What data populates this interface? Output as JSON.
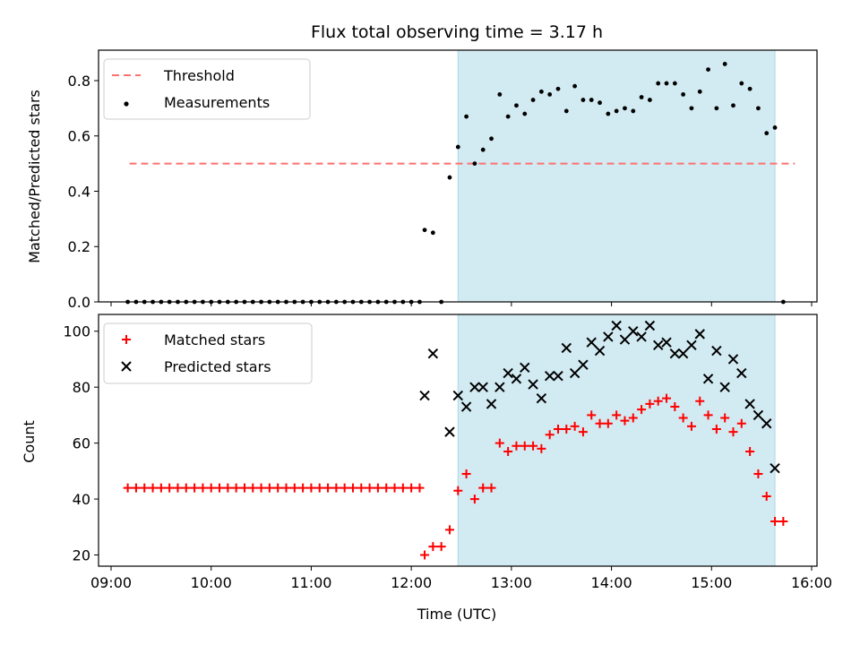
{
  "title": "Flux total observing time = 3.17 h",
  "colors": {
    "threshold": "#ff7070",
    "measurement": "#000000",
    "matched": "#ff0000",
    "predicted": "#000000",
    "span": "#add8e6"
  },
  "chart_data": [
    {
      "type": "scatter",
      "ylabel": "Matched/Predicted stars",
      "xlim": [
        "09:00",
        "16:00"
      ],
      "ylim": [
        0,
        0.91
      ],
      "yticks": [
        "0.0",
        "0.2",
        "0.4",
        "0.6",
        "0.8"
      ],
      "legend": {
        "position": "top-left",
        "entries": [
          "Threshold",
          "Measurements"
        ]
      },
      "observing_span": {
        "start": "12:28",
        "end": "15:38"
      },
      "threshold": {
        "name": "Threshold",
        "value": 0.5,
        "x_start": "09:11",
        "x_end": "15:50"
      },
      "series": [
        {
          "name": "Measurements",
          "points": [
            [
              "09:10",
              0
            ],
            [
              "09:15",
              0
            ],
            [
              "09:20",
              0
            ],
            [
              "09:25",
              0
            ],
            [
              "09:30",
              0
            ],
            [
              "09:35",
              0
            ],
            [
              "09:40",
              0
            ],
            [
              "09:45",
              0
            ],
            [
              "09:50",
              0
            ],
            [
              "09:55",
              0
            ],
            [
              "10:00",
              0
            ],
            [
              "10:05",
              0
            ],
            [
              "10:10",
              0
            ],
            [
              "10:15",
              0
            ],
            [
              "10:20",
              0
            ],
            [
              "10:25",
              0
            ],
            [
              "10:30",
              0
            ],
            [
              "10:35",
              0
            ],
            [
              "10:40",
              0
            ],
            [
              "10:45",
              0
            ],
            [
              "10:50",
              0
            ],
            [
              "10:55",
              0
            ],
            [
              "11:00",
              0
            ],
            [
              "11:05",
              0
            ],
            [
              "11:10",
              0
            ],
            [
              "11:15",
              0
            ],
            [
              "11:20",
              0
            ],
            [
              "11:25",
              0
            ],
            [
              "11:30",
              0
            ],
            [
              "11:35",
              0
            ],
            [
              "11:40",
              0
            ],
            [
              "11:45",
              0
            ],
            [
              "11:50",
              0
            ],
            [
              "11:55",
              0
            ],
            [
              "12:00",
              0
            ],
            [
              "12:05",
              0
            ],
            [
              "12:08",
              0.26
            ],
            [
              "12:13",
              0.25
            ],
            [
              "12:18",
              0
            ],
            [
              "12:23",
              0.45
            ],
            [
              "12:28",
              0.56
            ],
            [
              "12:33",
              0.67
            ],
            [
              "12:38",
              0.5
            ],
            [
              "12:43",
              0.55
            ],
            [
              "12:48",
              0.59
            ],
            [
              "12:53",
              0.75
            ],
            [
              "12:58",
              0.67
            ],
            [
              "13:03",
              0.71
            ],
            [
              "13:08",
              0.68
            ],
            [
              "13:13",
              0.73
            ],
            [
              "13:18",
              0.76
            ],
            [
              "13:23",
              0.75
            ],
            [
              "13:28",
              0.77
            ],
            [
              "13:33",
              0.69
            ],
            [
              "13:38",
              0.78
            ],
            [
              "13:43",
              0.73
            ],
            [
              "13:48",
              0.73
            ],
            [
              "13:53",
              0.72
            ],
            [
              "13:58",
              0.68
            ],
            [
              "14:03",
              0.69
            ],
            [
              "14:08",
              0.7
            ],
            [
              "14:13",
              0.69
            ],
            [
              "14:18",
              0.74
            ],
            [
              "14:23",
              0.73
            ],
            [
              "14:28",
              0.79
            ],
            [
              "14:33",
              0.79
            ],
            [
              "14:38",
              0.79
            ],
            [
              "14:43",
              0.75
            ],
            [
              "14:48",
              0.7
            ],
            [
              "14:53",
              0.76
            ],
            [
              "14:58",
              0.84
            ],
            [
              "15:03",
              0.7
            ],
            [
              "15:08",
              0.86
            ],
            [
              "15:13",
              0.71
            ],
            [
              "15:18",
              0.79
            ],
            [
              "15:23",
              0.77
            ],
            [
              "15:28",
              0.7
            ],
            [
              "15:33",
              0.61
            ],
            [
              "15:38",
              0.63
            ],
            [
              "15:43",
              0
            ]
          ]
        }
      ]
    },
    {
      "type": "scatter",
      "xlabel": "Time (UTC)",
      "ylabel": "Count",
      "xlim": [
        "09:00",
        "16:00"
      ],
      "xticks": [
        "09:00",
        "10:00",
        "11:00",
        "12:00",
        "13:00",
        "14:00",
        "15:00",
        "16:00"
      ],
      "ylim": [
        16,
        106
      ],
      "yticks": [
        "20",
        "40",
        "60",
        "80",
        "100"
      ],
      "legend": {
        "position": "top-left",
        "entries": [
          "Matched stars",
          "Predicted stars"
        ]
      },
      "observing_span": {
        "start": "12:28",
        "end": "15:38"
      },
      "series": [
        {
          "name": "Matched stars",
          "marker": "plus",
          "points": [
            [
              "09:10",
              44
            ],
            [
              "09:15",
              44
            ],
            [
              "09:20",
              44
            ],
            [
              "09:25",
              44
            ],
            [
              "09:30",
              44
            ],
            [
              "09:35",
              44
            ],
            [
              "09:40",
              44
            ],
            [
              "09:45",
              44
            ],
            [
              "09:50",
              44
            ],
            [
              "09:55",
              44
            ],
            [
              "10:00",
              44
            ],
            [
              "10:05",
              44
            ],
            [
              "10:10",
              44
            ],
            [
              "10:15",
              44
            ],
            [
              "10:20",
              44
            ],
            [
              "10:25",
              44
            ],
            [
              "10:30",
              44
            ],
            [
              "10:35",
              44
            ],
            [
              "10:40",
              44
            ],
            [
              "10:45",
              44
            ],
            [
              "10:50",
              44
            ],
            [
              "10:55",
              44
            ],
            [
              "11:00",
              44
            ],
            [
              "11:05",
              44
            ],
            [
              "11:10",
              44
            ],
            [
              "11:15",
              44
            ],
            [
              "11:20",
              44
            ],
            [
              "11:25",
              44
            ],
            [
              "11:30",
              44
            ],
            [
              "11:35",
              44
            ],
            [
              "11:40",
              44
            ],
            [
              "11:45",
              44
            ],
            [
              "11:50",
              44
            ],
            [
              "11:55",
              44
            ],
            [
              "12:00",
              44
            ],
            [
              "12:05",
              44
            ],
            [
              "12:08",
              20
            ],
            [
              "12:13",
              23
            ],
            [
              "12:18",
              23
            ],
            [
              "12:23",
              29
            ],
            [
              "12:28",
              43
            ],
            [
              "12:33",
              49
            ],
            [
              "12:38",
              40
            ],
            [
              "12:43",
              44
            ],
            [
              "12:48",
              44
            ],
            [
              "12:53",
              60
            ],
            [
              "12:58",
              57
            ],
            [
              "13:03",
              59
            ],
            [
              "13:08",
              59
            ],
            [
              "13:13",
              59
            ],
            [
              "13:18",
              58
            ],
            [
              "13:23",
              63
            ],
            [
              "13:28",
              65
            ],
            [
              "13:33",
              65
            ],
            [
              "13:38",
              66
            ],
            [
              "13:43",
              64
            ],
            [
              "13:48",
              70
            ],
            [
              "13:53",
              67
            ],
            [
              "13:58",
              67
            ],
            [
              "14:03",
              70
            ],
            [
              "14:08",
              68
            ],
            [
              "14:13",
              69
            ],
            [
              "14:18",
              72
            ],
            [
              "14:23",
              74
            ],
            [
              "14:28",
              75
            ],
            [
              "14:33",
              76
            ],
            [
              "14:38",
              73
            ],
            [
              "14:43",
              69
            ],
            [
              "14:48",
              66
            ],
            [
              "14:53",
              75
            ],
            [
              "14:58",
              70
            ],
            [
              "15:03",
              65
            ],
            [
              "15:08",
              69
            ],
            [
              "15:13",
              64
            ],
            [
              "15:18",
              67
            ],
            [
              "15:23",
              57
            ],
            [
              "15:28",
              49
            ],
            [
              "15:33",
              41
            ],
            [
              "15:38",
              32
            ],
            [
              "15:43",
              32
            ]
          ]
        },
        {
          "name": "Predicted stars",
          "marker": "x",
          "points": [
            [
              "12:08",
              77
            ],
            [
              "12:13",
              92
            ],
            [
              "12:23",
              64
            ],
            [
              "12:28",
              77
            ],
            [
              "12:33",
              73
            ],
            [
              "12:38",
              80
            ],
            [
              "12:43",
              80
            ],
            [
              "12:48",
              74
            ],
            [
              "12:53",
              80
            ],
            [
              "12:58",
              85
            ],
            [
              "13:03",
              83
            ],
            [
              "13:08",
              87
            ],
            [
              "13:13",
              81
            ],
            [
              "13:18",
              76
            ],
            [
              "13:23",
              84
            ],
            [
              "13:28",
              84
            ],
            [
              "13:33",
              94
            ],
            [
              "13:38",
              85
            ],
            [
              "13:43",
              88
            ],
            [
              "13:48",
              96
            ],
            [
              "13:53",
              93
            ],
            [
              "13:58",
              98
            ],
            [
              "14:03",
              102
            ],
            [
              "14:08",
              97
            ],
            [
              "14:13",
              100
            ],
            [
              "14:18",
              98
            ],
            [
              "14:23",
              102
            ],
            [
              "14:28",
              95
            ],
            [
              "14:33",
              96
            ],
            [
              "14:38",
              92
            ],
            [
              "14:43",
              92
            ],
            [
              "14:48",
              95
            ],
            [
              "14:53",
              99
            ],
            [
              "14:58",
              83
            ],
            [
              "15:03",
              93
            ],
            [
              "15:08",
              80
            ],
            [
              "15:13",
              90
            ],
            [
              "15:18",
              85
            ],
            [
              "15:23",
              74
            ],
            [
              "15:28",
              70
            ],
            [
              "15:33",
              67
            ],
            [
              "15:38",
              51
            ]
          ]
        }
      ]
    }
  ]
}
